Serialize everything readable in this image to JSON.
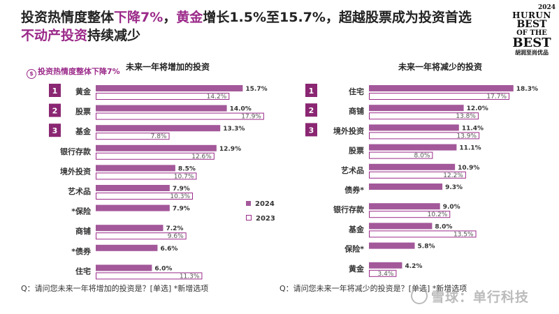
{
  "headline": {
    "part1": "投资热情度整体",
    "part2": "下降7%",
    "part3": "，",
    "part4": "黄金",
    "part5": "增长1.5%至15.7%，超越股票成为投资首选",
    "part6": "不动产投资",
    "part7": "持续减少"
  },
  "logo": {
    "year": "2024",
    "line1": "HURUN",
    "line2": "BEST",
    "line3": "OF THE",
    "line4": "BEST",
    "cn": "胡润至尚优品"
  },
  "subtitle": "投资热情度整体下降7%",
  "legend": {
    "label_2024": "2024",
    "label_2023": "2023"
  },
  "footer": {
    "left": "Q：请问您未来一年将增加的投资是？[单选]  *新增选项",
    "right": "Q：请问您未来一年将减少的投资是？[单选]  *新增选项"
  },
  "watermark": "雪球：单行科技",
  "colors": {
    "series2024": "#a3589a",
    "series2023_border": "#9b2a89",
    "badge": "#8a2672",
    "accent": "#9b2a89"
  },
  "chart_data": [
    {
      "type": "bar",
      "title": "未来一年将增加的投资",
      "categories": [
        "黄金",
        "股票",
        "基金",
        "银行存款",
        "境外投资",
        "艺术品",
        "*保险",
        "商铺",
        "*债券",
        "住宅"
      ],
      "ranks": [
        "1",
        "2",
        "3"
      ],
      "series": [
        {
          "name": "2024",
          "values": [
            15.7,
            14.0,
            13.3,
            12.9,
            8.5,
            7.9,
            7.9,
            7.2,
            6.6,
            6.0
          ]
        },
        {
          "name": "2023",
          "values": [
            14.2,
            17.9,
            7.8,
            12.6,
            10.7,
            10.3,
            null,
            9.6,
            null,
            11.3
          ]
        }
      ],
      "unit": "%",
      "legend": "right"
    },
    {
      "type": "bar",
      "title": "未来一年将减少的投资",
      "categories": [
        "住宅",
        "商铺",
        "境外投资",
        "股票",
        "艺术品",
        "债券*",
        "银行存款",
        "基金",
        "保险*",
        "黄金"
      ],
      "ranks": [
        "1",
        "2",
        "3"
      ],
      "series": [
        {
          "name": "2024",
          "values": [
            18.3,
            12.0,
            11.4,
            11.1,
            10.9,
            9.3,
            9.0,
            8.0,
            5.8,
            4.2
          ]
        },
        {
          "name": "2023",
          "values": [
            17.7,
            13.8,
            13.9,
            8.0,
            12.2,
            null,
            10.2,
            13.5,
            null,
            3.4
          ]
        }
      ],
      "unit": "%"
    }
  ]
}
